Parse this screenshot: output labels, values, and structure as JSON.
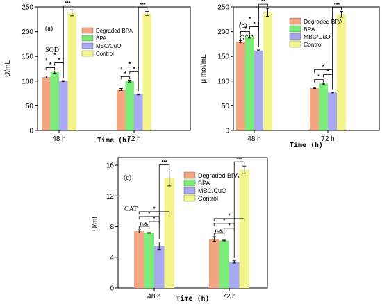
{
  "chart_data": [
    {
      "type": "bar",
      "panel_label": "(a)",
      "inner_label": "SOD",
      "xlabel": "Time (h)",
      "ylabel": "U/mL",
      "ylim": [
        0,
        250
      ],
      "yticks": [
        0,
        50,
        100,
        150,
        200,
        250
      ],
      "categories": [
        "48 h",
        "72 h"
      ],
      "legend_position": "top-right",
      "series": [
        {
          "name": "Degraded BPA",
          "color": "#F4A582",
          "values": [
            108,
            83
          ],
          "errors": [
            2,
            2
          ]
        },
        {
          "name": "BPA",
          "color": "#7CEB7C",
          "values": [
            118,
            100
          ],
          "errors": [
            2,
            2
          ]
        },
        {
          "name": "MBC/CuO",
          "color": "#A8A8F0",
          "values": [
            100,
            73
          ],
          "errors": [
            1,
            1
          ]
        },
        {
          "name": "Control",
          "color": "#F4F48C",
          "values": [
            238,
            237
          ],
          "errors": [
            6,
            4
          ]
        }
      ],
      "significance": [
        {
          "category": 0,
          "from": 0,
          "to": 1,
          "label": "*"
        },
        {
          "category": 0,
          "from": 1,
          "to": 2,
          "label": "*"
        },
        {
          "category": 0,
          "from": 0,
          "to": 2,
          "label": "*"
        },
        {
          "category": 0,
          "from": 2,
          "to": 3,
          "label": "***"
        },
        {
          "category": 1,
          "from": 0,
          "to": 1,
          "label": "*"
        },
        {
          "category": 1,
          "from": 1,
          "to": 2,
          "label": "*"
        },
        {
          "category": 1,
          "from": 0,
          "to": 2,
          "label": "*"
        },
        {
          "category": 1,
          "from": 2,
          "to": 3,
          "label": "***"
        }
      ]
    },
    {
      "type": "bar",
      "panel_label": "(b)",
      "inner_label": "GSH",
      "xlabel": "Time (h)",
      "ylabel": "μ mol/mL",
      "ylim": [
        0,
        250
      ],
      "yticks": [
        0,
        50,
        100,
        150,
        200,
        250
      ],
      "categories": [
        "48 h",
        "72 h"
      ],
      "legend_position": "top-right",
      "series": [
        {
          "name": "Degraded BPA",
          "color": "#F4A582",
          "values": [
            180,
            86
          ],
          "errors": [
            2,
            1
          ]
        },
        {
          "name": "BPA",
          "color": "#7CEB7C",
          "values": [
            190,
            95
          ],
          "errors": [
            3,
            1
          ]
        },
        {
          "name": "MBC/CuO",
          "color": "#A8A8F0",
          "values": [
            162,
            77
          ],
          "errors": [
            1,
            1
          ]
        },
        {
          "name": "Control",
          "color": "#F4F48C",
          "values": [
            239,
            235
          ],
          "errors": [
            8,
            6
          ]
        }
      ],
      "significance": [
        {
          "category": 0,
          "from": 0,
          "to": 1,
          "label": "*"
        },
        {
          "category": 0,
          "from": 1,
          "to": 2,
          "label": "*"
        },
        {
          "category": 0,
          "from": 0,
          "to": 2,
          "label": "*"
        },
        {
          "category": 0,
          "from": 2,
          "to": 3,
          "label": "**"
        },
        {
          "category": 1,
          "from": 0,
          "to": 1,
          "label": "*"
        },
        {
          "category": 1,
          "from": 1,
          "to": 2,
          "label": "*"
        },
        {
          "category": 1,
          "from": 0,
          "to": 2,
          "label": "*"
        },
        {
          "category": 1,
          "from": 2,
          "to": 3,
          "label": "***"
        }
      ]
    },
    {
      "type": "bar",
      "panel_label": "(c)",
      "inner_label": "CAT",
      "xlabel": "Time (h)",
      "ylabel": "U/mL",
      "ylim": [
        0,
        17
      ],
      "yticks": [
        0,
        4,
        8,
        12,
        16
      ],
      "categories": [
        "48 h",
        "72 h"
      ],
      "legend_position": "top-right",
      "series": [
        {
          "name": "Degraded BPA",
          "color": "#F4A582",
          "values": [
            7.4,
            6.4
          ],
          "errors": [
            0.2,
            0.3
          ]
        },
        {
          "name": "BPA",
          "color": "#7CEB7C",
          "values": [
            7.2,
            6.2
          ],
          "errors": [
            0.05,
            0.05
          ]
        },
        {
          "name": "MBC/CuO",
          "color": "#A8A8F0",
          "values": [
            5.5,
            3.4
          ],
          "errors": [
            0.5,
            0.15
          ]
        },
        {
          "name": "Control",
          "color": "#F4F48C",
          "values": [
            14.4,
            15.4
          ],
          "errors": [
            1.1,
            0.5
          ]
        }
      ],
      "significance": [
        {
          "category": 0,
          "from": 0,
          "to": 1,
          "label": "n.s."
        },
        {
          "category": 0,
          "from": 1,
          "to": 2,
          "label": "*"
        },
        {
          "category": 0,
          "from": 0,
          "to": 2,
          "label": "*"
        },
        {
          "category": 0,
          "from": 0,
          "to": 3,
          "label": "*"
        },
        {
          "category": 0,
          "from": 2,
          "to": 3,
          "label": "***"
        },
        {
          "category": 1,
          "from": 0,
          "to": 1,
          "label": "n.s."
        },
        {
          "category": 1,
          "from": 1,
          "to": 2,
          "label": "*"
        },
        {
          "category": 1,
          "from": 0,
          "to": 2,
          "label": "*"
        },
        {
          "category": 1,
          "from": 0,
          "to": 3,
          "label": "*"
        },
        {
          "category": 1,
          "from": 2,
          "to": 3,
          "label": "***"
        }
      ]
    }
  ]
}
